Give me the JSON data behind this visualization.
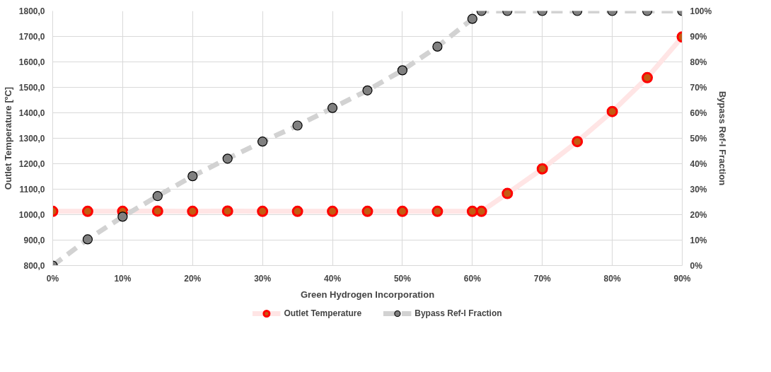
{
  "chart_data": {
    "type": "line",
    "xlabel": "Green Hydrogen Incorporation",
    "ylabel": "Outlet Temperature [ºC]",
    "y2label": "Bypass Ref-I Fraction",
    "x": [
      0,
      5,
      10,
      15,
      20,
      25,
      30,
      35,
      40,
      45,
      50,
      55,
      60,
      61.3,
      65,
      70,
      75,
      80,
      85,
      90
    ],
    "xlim": [
      0,
      90
    ],
    "xticks": [
      {
        "value": 0,
        "label": "0%"
      },
      {
        "value": 10,
        "label": "10%"
      },
      {
        "value": 20,
        "label": "20%"
      },
      {
        "value": 30,
        "label": "30%"
      },
      {
        "value": 40,
        "label": "40%"
      },
      {
        "value": 50,
        "label": "50%"
      },
      {
        "value": 60,
        "label": "60%"
      },
      {
        "value": 70,
        "label": "70%"
      },
      {
        "value": 80,
        "label": "80%"
      },
      {
        "value": 90,
        "label": "90%"
      }
    ],
    "ylim": [
      800,
      1800
    ],
    "yticks": [
      {
        "value": 800,
        "label": "800,0"
      },
      {
        "value": 900,
        "label": "900,0"
      },
      {
        "value": 1000,
        "label": "1000,0"
      },
      {
        "value": 1100,
        "label": "1100,0"
      },
      {
        "value": 1200,
        "label": "1200,0"
      },
      {
        "value": 1300,
        "label": "1300,0"
      },
      {
        "value": 1400,
        "label": "1400,0"
      },
      {
        "value": 1500,
        "label": "1500,0"
      },
      {
        "value": 1600,
        "label": "1600,0"
      },
      {
        "value": 1700,
        "label": "1700,0"
      },
      {
        "value": 1800,
        "label": "1800,0"
      }
    ],
    "y2lim": [
      0,
      100
    ],
    "y2ticks": [
      {
        "value": 0,
        "label": "0%"
      },
      {
        "value": 10,
        "label": "10%"
      },
      {
        "value": 20,
        "label": "20%"
      },
      {
        "value": 30,
        "label": "30%"
      },
      {
        "value": 40,
        "label": "40%"
      },
      {
        "value": 50,
        "label": "50%"
      },
      {
        "value": 60,
        "label": "60%"
      },
      {
        "value": 70,
        "label": "70%"
      },
      {
        "value": 80,
        "label": "80%"
      },
      {
        "value": 90,
        "label": "90%"
      },
      {
        "value": 100,
        "label": "100%"
      }
    ],
    "grid": true,
    "legend": "bottom",
    "marker": "circle",
    "series": [
      {
        "name": "Outlet Temperature",
        "color": "#ff0000",
        "line_style": "solid",
        "values": [
          1013,
          1013,
          1013,
          1014,
          1013,
          1014,
          1013,
          1013,
          1013,
          1013,
          1013,
          1013,
          1013,
          1013,
          1083,
          1180,
          1287,
          1405,
          1538,
          1698
        ]
      },
      {
        "name": "Bypass Ref-I Fraction",
        "color": "#808080",
        "line_style": "dashed",
        "axis": "y2",
        "values": [
          0,
          10.3,
          19.2,
          27.3,
          35.1,
          42.0,
          48.7,
          55.0,
          61.9,
          68.8,
          76.7,
          86.0,
          96.9,
          100,
          100,
          100,
          100,
          100,
          100,
          100
        ]
      }
    ]
  }
}
